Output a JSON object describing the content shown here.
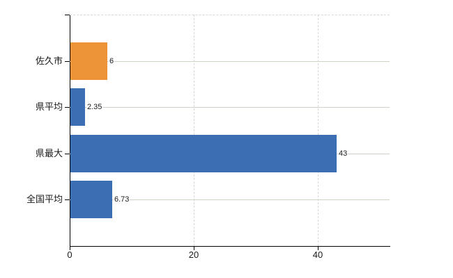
{
  "chart_data": {
    "type": "bar",
    "orientation": "horizontal",
    "title": "",
    "xlabel": "",
    "ylabel": "",
    "categories": [
      "佐久市",
      "県平均",
      "県最大",
      "全国平均"
    ],
    "values": [
      6,
      2.35,
      43,
      6.73
    ],
    "value_labels": [
      "6",
      "2.35",
      "43",
      "6.73"
    ],
    "bar_colors": [
      "#ee9438",
      "#3c6eb4",
      "#3c6eb4",
      "#3c6eb4"
    ],
    "xlim": [
      0,
      51.6
    ],
    "xticks": [
      0,
      20,
      40
    ],
    "xtick_labels": [
      "0",
      "20",
      "40"
    ],
    "grid": true,
    "legend": false
  },
  "colors": {
    "background": "#ffffff",
    "axis": "#000000",
    "h_gridline": "#ccd4c8",
    "v_gridline": "#d8d8d8",
    "top_border": "#d8d8d8",
    "text": "#1a1a1a",
    "accent_orange": "#ee9438",
    "accent_blue": "#3c6eb4"
  }
}
